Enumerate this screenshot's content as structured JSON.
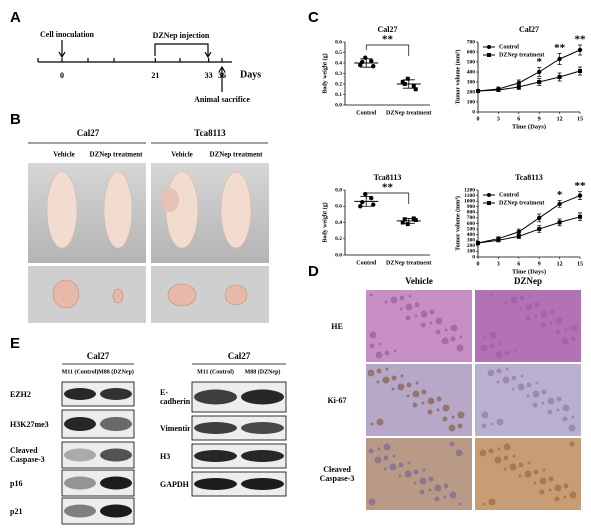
{
  "panel_a": {
    "label": "A",
    "events": [
      "Cell inoculation",
      "DZNep injection",
      "Animal sacrifice"
    ],
    "days": [
      0,
      21,
      33,
      36
    ],
    "unit": "Days"
  },
  "panel_b": {
    "label": "B",
    "groups": [
      "Cal27",
      "Tca8113"
    ],
    "columns": [
      "Vehicle",
      "DZNep treatment",
      "Vehicle",
      "DZNep treatment"
    ]
  },
  "panel_c": {
    "label": "C"
  },
  "chart_data": [
    {
      "type": "strip",
      "title": "Cal27",
      "ylabel": "Body weight (g)",
      "categories": [
        "Control",
        "DZNep treatment"
      ],
      "points": [
        [
          0.38,
          0.42,
          0.45,
          0.37,
          0.41
        ],
        [
          0.22,
          0.18,
          0.25,
          0.15,
          0.2
        ]
      ],
      "means": [
        0.4,
        0.2
      ],
      "errors": [
        0.04,
        0.04
      ],
      "ylim": [
        0,
        0.6
      ],
      "yticks": [
        {
          "value": 0,
          "label": "0.0"
        },
        0.1,
        0.2,
        0.3,
        0.4,
        0.5,
        0.6
      ],
      "significance": "**",
      "color": "#000000"
    },
    {
      "type": "line",
      "title": "Cal27",
      "xlabel": "Time (Days)",
      "ylabel": "Tumor volume (mm³)",
      "x": [
        0,
        3,
        6,
        9,
        12,
        15
      ],
      "xlim": [
        0,
        15
      ],
      "xticks": [
        0,
        3,
        6,
        9,
        12,
        15
      ],
      "ylim": [
        0,
        700
      ],
      "yticks": [
        0,
        100,
        200,
        300,
        400,
        500,
        600,
        700
      ],
      "legend": "upper left",
      "series": [
        {
          "name": "Control",
          "color": "#000000",
          "marker": "circle",
          "values": [
            210,
            230,
            290,
            400,
            530,
            620
          ],
          "errors": [
            15,
            20,
            30,
            45,
            55,
            50
          ]
        },
        {
          "name": "DZNep treatment",
          "color": "#000000",
          "marker": "square",
          "values": [
            210,
            220,
            250,
            300,
            350,
            410
          ],
          "errors": [
            15,
            15,
            25,
            35,
            40,
            40
          ]
        }
      ],
      "annotations": [
        {
          "text": "*",
          "x": 9
        },
        {
          "text": "**",
          "x": 12
        },
        {
          "text": "**",
          "x": 15
        }
      ]
    },
    {
      "type": "strip",
      "title": "Tca8113",
      "ylabel": "Body weight (g)",
      "categories": [
        "Control",
        "DZNep treatment"
      ],
      "points": [
        [
          0.6,
          0.7,
          0.75,
          0.62,
          0.65
        ],
        [
          0.4,
          0.45,
          0.38,
          0.43,
          0.44
        ]
      ],
      "means": [
        0.66,
        0.42
      ],
      "errors": [
        0.06,
        0.03
      ],
      "ylim": [
        0,
        0.8
      ],
      "yticks": [
        {
          "value": 0,
          "label": "0.0"
        },
        0.2,
        0.4,
        0.6,
        0.8
      ],
      "significance": "**",
      "color": "#000000"
    },
    {
      "type": "line",
      "title": "Tca8113",
      "xlabel": "Time (Days)",
      "ylabel": "Tumor volume (mm³)",
      "x": [
        0,
        3,
        6,
        9,
        12,
        15
      ],
      "xlim": [
        0,
        15
      ],
      "xticks": [
        0,
        3,
        6,
        9,
        12,
        15
      ],
      "ylim": [
        0,
        1200
      ],
      "yticks": [
        0,
        100,
        200,
        300,
        400,
        500,
        600,
        700,
        800,
        900,
        1000,
        1100,
        1200
      ],
      "legend": "upper left",
      "series": [
        {
          "name": "Control",
          "color": "#000000",
          "marker": "circle",
          "values": [
            250,
            330,
            450,
            700,
            950,
            1100
          ],
          "errors": [
            20,
            30,
            50,
            70,
            60,
            70
          ]
        },
        {
          "name": "DZNep treatment",
          "color": "#000000",
          "marker": "square",
          "values": [
            250,
            300,
            370,
            500,
            620,
            720
          ],
          "errors": [
            20,
            25,
            40,
            60,
            60,
            70
          ]
        }
      ],
      "annotations": [
        {
          "text": "*",
          "x": 12
        },
        {
          "text": "**",
          "x": 15
        }
      ]
    }
  ],
  "panel_d": {
    "label": "D",
    "columns": [
      "Vehicle",
      "DZNep"
    ],
    "rows": [
      "HE",
      "Ki-67",
      "Cleaved Caspase-3"
    ]
  },
  "panel_e": {
    "label": "E",
    "blots": [
      {
        "title": "Cal27",
        "columns": [
          "M11 (Control)",
          "M88 (DZNep)"
        ],
        "rows": [
          "EZH2",
          "H3K27me3",
          "Cleaved Caspase-3",
          "p16",
          "p21"
        ]
      },
      {
        "title": "Cal27",
        "columns": [
          "M11 (Control)",
          "M88 (DZNep)"
        ],
        "rows": [
          "E-cadherin",
          "Vimentin",
          "H3",
          "GAPDH"
        ]
      }
    ]
  }
}
